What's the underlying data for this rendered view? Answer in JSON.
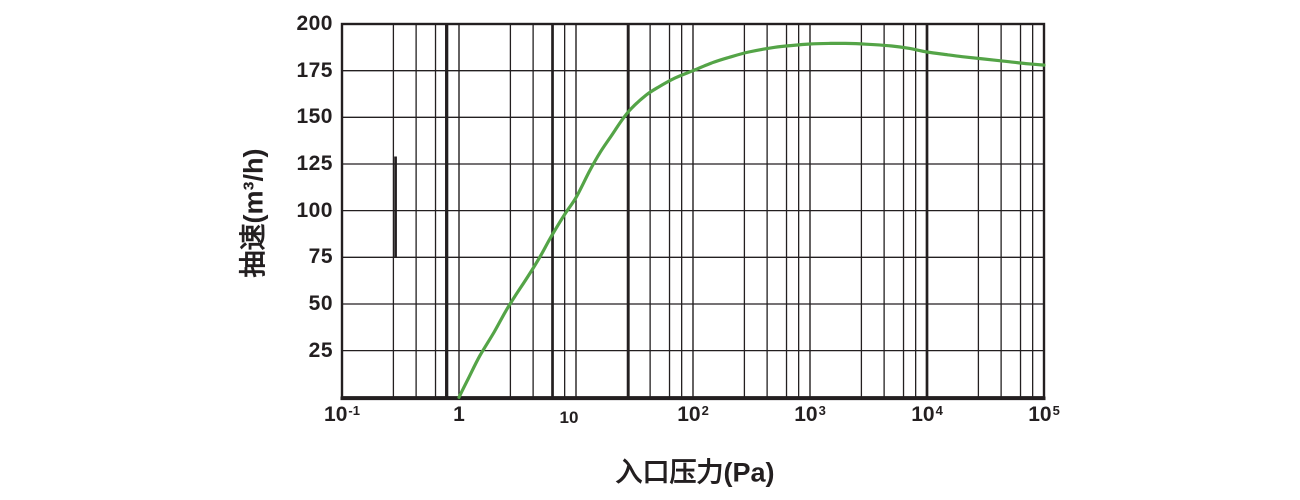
{
  "chart_data": {
    "type": "line",
    "title": "",
    "xlabel": "入口压力(Pa)",
    "ylabel": "抽速(m³/h)",
    "x_scale": "log",
    "xlim": [
      0.1,
      100000
    ],
    "ylim": [
      0,
      200
    ],
    "grid": "on",
    "legend": "none",
    "colors": {
      "curve": "#54a447",
      "grid": "#231f20",
      "text": "#231f20",
      "background": "#ffffff"
    },
    "y_ticks": [
      25,
      50,
      75,
      100,
      125,
      150,
      175,
      200
    ],
    "x_ticks": [
      {
        "value": 0.1,
        "base": "10",
        "exp": "-1"
      },
      {
        "value": 1,
        "base": "1"
      },
      {
        "value": 10,
        "base": "10",
        "small": true,
        "dx": -7
      },
      {
        "value": 100,
        "base": "10",
        "exp": "2"
      },
      {
        "value": 1000,
        "base": "10",
        "exp": "3"
      },
      {
        "value": 10000,
        "base": "10",
        "exp": "4"
      },
      {
        "value": 100000,
        "base": "10",
        "exp": "5"
      }
    ],
    "minor_grid_multiples": [
      2.75,
      4.3,
      6.3,
      8
    ],
    "bold_gridlines_x": [
      0.78,
      6.3,
      28,
      10000
    ],
    "bold_segment": {
      "x": 0.287,
      "y_from": 75,
      "y_to": 129
    },
    "series": [
      {
        "name": "pumping-speed-curve",
        "points": [
          [
            1,
            0
          ],
          [
            1.2,
            10
          ],
          [
            1.5,
            22
          ],
          [
            2,
            35
          ],
          [
            2.5,
            46
          ],
          [
            3,
            54
          ],
          [
            4,
            66
          ],
          [
            5,
            76
          ],
          [
            6,
            85
          ],
          [
            8,
            98
          ],
          [
            10,
            107
          ],
          [
            13,
            121
          ],
          [
            16,
            131
          ],
          [
            20,
            140
          ],
          [
            25,
            149
          ],
          [
            30,
            155
          ],
          [
            40,
            162
          ],
          [
            50,
            166
          ],
          [
            70,
            171
          ],
          [
            100,
            175
          ],
          [
            150,
            179.5
          ],
          [
            200,
            182
          ],
          [
            300,
            185
          ],
          [
            500,
            187.5
          ],
          [
            700,
            188.5
          ],
          [
            1000,
            189.3
          ],
          [
            1500,
            189.6
          ],
          [
            2000,
            189.6
          ],
          [
            3000,
            189.2
          ],
          [
            5000,
            188.2
          ],
          [
            7000,
            187
          ],
          [
            10000,
            185
          ],
          [
            15000,
            183.5
          ],
          [
            20000,
            182.5
          ],
          [
            30000,
            181.3
          ],
          [
            50000,
            179.8
          ],
          [
            70000,
            178.8
          ],
          [
            100000,
            178
          ]
        ]
      }
    ]
  }
}
